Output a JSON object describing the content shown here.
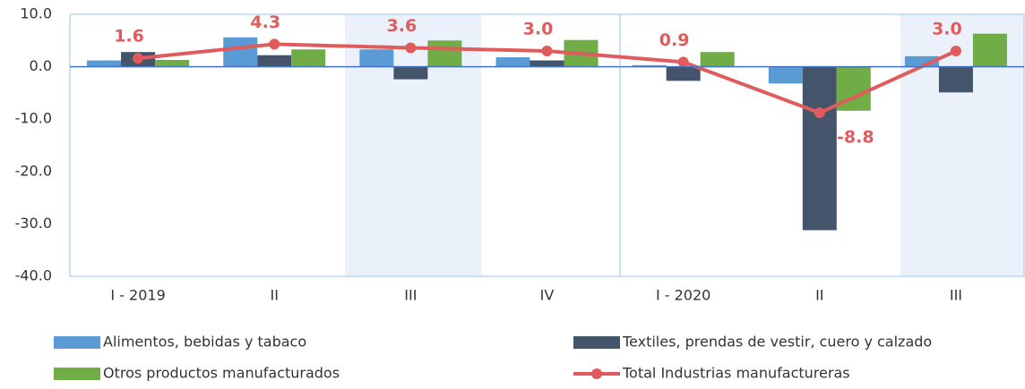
{
  "chart_data": {
    "type": "bar",
    "categories": [
      "I - 2019",
      "II",
      "III",
      "IV",
      "I - 2020",
      "II",
      "III"
    ],
    "series": [
      {
        "name": "Alimentos, bebidas y tabaco",
        "color": "#5b9bd5",
        "values": [
          1.2,
          5.6,
          3.3,
          1.8,
          0.3,
          -3.2,
          2.0
        ]
      },
      {
        "name": "Textiles, prendas de vestir, cuero y calzado",
        "color": "#44546a",
        "values": [
          2.8,
          2.2,
          -2.4,
          1.2,
          -2.7,
          -31.2,
          -4.9
        ]
      },
      {
        "name": "Otros productos manufacturados",
        "color": "#70ad47",
        "values": [
          1.3,
          3.3,
          5.0,
          5.1,
          2.8,
          -8.4,
          6.3
        ]
      },
      {
        "name": "Total Industrias manufactureras",
        "type": "line",
        "color": "#e05c5c",
        "values": [
          1.6,
          4.3,
          3.6,
          3.0,
          0.9,
          -8.8,
          3.0
        ],
        "value_labels": [
          "1.6",
          "4.3",
          "3.6",
          "3.0",
          "0.9",
          "-8.8",
          "3.0"
        ]
      }
    ],
    "ylim": [
      -40,
      10
    ],
    "yticks": [
      {
        "value": 10,
        "label": "10.0"
      },
      {
        "value": 0,
        "label": "0.0"
      },
      {
        "value": -10,
        "label": "-10.0"
      },
      {
        "value": -20,
        "label": "-20.0"
      },
      {
        "value": -30,
        "label": "-30.0"
      },
      {
        "value": -40,
        "label": "-40.0"
      }
    ]
  }
}
